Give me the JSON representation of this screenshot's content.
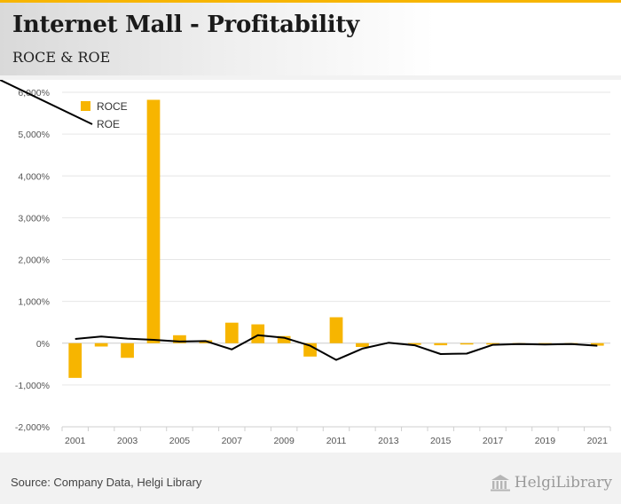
{
  "header": {
    "title": "Internet Mall - Profitability",
    "subtitle": "ROCE & ROE"
  },
  "footer": {
    "source": "Source: Company Data, Helgi Library",
    "brand_name": "HelgiLibrary"
  },
  "colors": {
    "accent": "#f7b500",
    "roce": "#f7b500",
    "roe": "#000000",
    "grid": "#e6e6e6"
  },
  "chart_data": {
    "type": "bar",
    "title": "ROCE & ROE",
    "xlabel": "",
    "ylabel": "",
    "ylim": [
      -2000,
      6000
    ],
    "y_ticks": [
      -2000,
      -1000,
      0,
      1000,
      2000,
      3000,
      4000,
      5000,
      6000
    ],
    "y_tick_labels": [
      "-2,000%",
      "-1,000%",
      "0%",
      "1,000%",
      "2,000%",
      "3,000%",
      "4,000%",
      "5,000%",
      "6,000%"
    ],
    "categories": [
      "2001",
      "2002",
      "2003",
      "2004",
      "2005",
      "2006",
      "2007",
      "2008",
      "2009",
      "2010",
      "2011",
      "2012",
      "2013",
      "2014",
      "2015",
      "2016",
      "2017",
      "2018",
      "2019",
      "2020",
      "2021"
    ],
    "x_tick_labels": [
      "2001",
      "2003",
      "2005",
      "2007",
      "2009",
      "2011",
      "2013",
      "2015",
      "2017",
      "2019",
      "2021"
    ],
    "legend": [
      "ROCE",
      "ROE"
    ],
    "legend_position": "top-left",
    "series": [
      {
        "name": "ROCE",
        "kind": "bar",
        "values": [
          -830,
          -80,
          -350,
          5820,
          190,
          70,
          490,
          450,
          170,
          -320,
          620,
          -90,
          0,
          -40,
          -50,
          -30,
          -30,
          -10,
          -10,
          -10,
          -60
        ]
      },
      {
        "name": "ROE",
        "kind": "line",
        "values": [
          100,
          160,
          110,
          80,
          40,
          50,
          -150,
          190,
          130,
          -60,
          -400,
          -130,
          10,
          -50,
          -260,
          -250,
          -40,
          -20,
          -30,
          -20,
          -60
        ]
      }
    ]
  }
}
